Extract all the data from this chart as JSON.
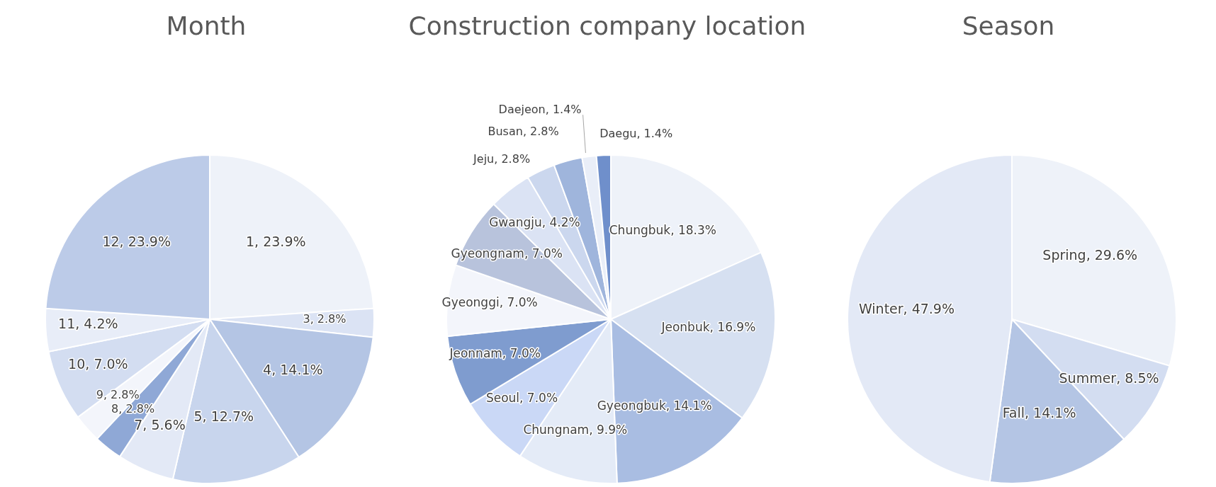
{
  "chart_data": [
    {
      "type": "pie",
      "title": "Month",
      "categories": [
        "1",
        "3",
        "4",
        "5",
        "7",
        "8",
        "9",
        "10",
        "11",
        "12"
      ],
      "values": [
        23.9,
        2.8,
        14.1,
        12.7,
        5.6,
        2.8,
        2.8,
        7.0,
        4.2,
        23.9
      ],
      "value_labels": [
        ", 23.9%",
        ", 2.8%",
        ", 14.1%",
        ", 12.7%",
        ", 5.6%",
        ", 2.8%",
        ", 2.8%",
        ", 7.0%",
        ", 4.2%",
        ", 23.9%"
      ],
      "colors": [
        "#eef2f9",
        "#dbe3f4",
        "#b4c5e4",
        "#c8d5ed",
        "#e3e9f6",
        "#8fa8d6",
        "#f3f5fb",
        "#d3ddf1",
        "#e8edf8",
        "#bccbe8"
      ]
    },
    {
      "type": "pie",
      "title": "Construction company location",
      "categories": [
        "Chungbuk",
        "Jeonbuk",
        "Gyeongbuk",
        "Chungnam",
        "Seoul",
        "Jeonnam",
        "Gyeonggi",
        "Gyeongnam",
        "Gwangju",
        "Jeju",
        "Busan",
        "Daejeon",
        "Daegu"
      ],
      "values": [
        18.3,
        16.9,
        14.1,
        9.9,
        7.0,
        7.0,
        7.0,
        7.0,
        4.2,
        2.8,
        2.8,
        1.4,
        1.4
      ],
      "value_labels": [
        ", 18.3%",
        ", 16.9%",
        ", 14.1%",
        ", 9.9%",
        ", 7.0%",
        ", 7.0%",
        ", 7.0%",
        ", 7.0%",
        ", 4.2%",
        ", 2.8%",
        ", 2.8%",
        ", 1.4%",
        ", 1.4%"
      ],
      "colors": [
        "#eef2f9",
        "#d6e0f1",
        "#a9bde2",
        "#e4ebf7",
        "#cad8f6",
        "#7f9ccf",
        "#f3f5fb",
        "#b8c3dc",
        "#dbe3f4",
        "#cbd7ee",
        "#9fb5dc",
        "#e9eef8",
        "#6f8fcb"
      ]
    },
    {
      "type": "pie",
      "title": "Season",
      "categories": [
        "Spring",
        "Summer",
        "Fall",
        "Winter"
      ],
      "values": [
        29.6,
        8.5,
        14.1,
        47.9
      ],
      "value_labels": [
        ", 29.6%",
        ", 8.5%",
        ", 14.1%",
        ", 47.9%"
      ],
      "colors": [
        "#eef2f9",
        "#d3ddf1",
        "#b4c5e4",
        "#e3e9f6"
      ]
    }
  ]
}
